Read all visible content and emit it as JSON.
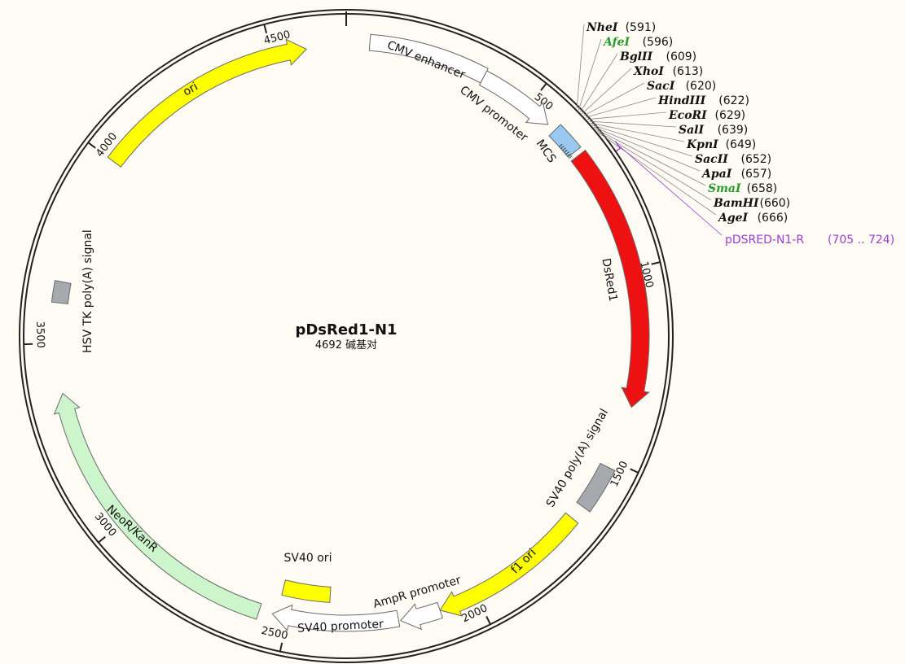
{
  "plasmid": {
    "name": "pDsRed1-N1",
    "length": 4692,
    "length_label": "4692 碱基对"
  },
  "ticks": [
    {
      "pos": 500,
      "label": "500"
    },
    {
      "pos": 1000,
      "label": "1000"
    },
    {
      "pos": 1500,
      "label": "1500"
    },
    {
      "pos": 2000,
      "label": "2000"
    },
    {
      "pos": 2500,
      "label": "2500"
    },
    {
      "pos": 3000,
      "label": "3000"
    },
    {
      "pos": 3500,
      "label": "3500"
    },
    {
      "pos": 4000,
      "label": "4000"
    },
    {
      "pos": 4500,
      "label": "4500"
    }
  ],
  "features": [
    {
      "name": "cmv-enhancer",
      "label": "CMV enhancer",
      "start": 60,
      "end": 364,
      "type": "box",
      "fill": "#ffffff"
    },
    {
      "name": "cmv-promoter",
      "label": "CMV promoter",
      "start": 364,
      "end": 568,
      "type": "arrow",
      "fill": "#ffffff"
    },
    {
      "name": "mcs",
      "label": "MCS",
      "start": 591,
      "end": 666,
      "type": "box",
      "fill": "#99c8f0"
    },
    {
      "name": "dsred1",
      "label": "DsRed1",
      "start": 679,
      "end": 1356,
      "type": "arrow",
      "fill": "#ee1111"
    },
    {
      "name": "sv40-polya",
      "label": "SV40 poly(A) signal",
      "start": 1520,
      "end": 1640,
      "type": "box",
      "fill": "#a6a9ae"
    },
    {
      "name": "f1-ori",
      "label": "f1 ori",
      "start": 1680,
      "end": 2100,
      "type": "arrow",
      "fill": "#ffff00"
    },
    {
      "name": "ampr-promoter",
      "label": "AmpR promoter",
      "start": 2100,
      "end": 2205,
      "type": "arrow",
      "fill": "#ffffff"
    },
    {
      "name": "sv40-promoter",
      "label": "SV40 promoter",
      "start": 2210,
      "end": 2540,
      "type": "arrow",
      "fill": "#ffffff"
    },
    {
      "name": "sv40-ori",
      "label": "SV40 ori",
      "start": 2392,
      "end": 2528,
      "type": "box",
      "fill": "#ffff00"
    },
    {
      "name": "neor-kanr",
      "label": "NeoR/KanR",
      "start": 2575,
      "end": 3370,
      "type": "arrow",
      "fill": "#ccf5cc"
    },
    {
      "name": "hsv-tk-polya",
      "label": "HSV TK poly(A) signal",
      "start": 3605,
      "end": 3660,
      "type": "box",
      "fill": "#a6a9ae"
    },
    {
      "name": "ori",
      "label": "ori",
      "start": 4000,
      "end": 4589,
      "type": "arrow",
      "fill": "#ffff00"
    }
  ],
  "enzymes": [
    {
      "name": "NheI",
      "pos": "(591)",
      "color": "#111111"
    },
    {
      "name": "AfeI",
      "pos": "(596)",
      "color": "#2a9a2a"
    },
    {
      "name": "BglII",
      "pos": "(609)",
      "color": "#111111"
    },
    {
      "name": "XhoI",
      "pos": "(613)",
      "color": "#111111"
    },
    {
      "name": "SacI",
      "pos": "(620)",
      "color": "#111111"
    },
    {
      "name": "HindIII",
      "pos": "(622)",
      "color": "#111111"
    },
    {
      "name": "EcoRI",
      "pos": "(629)",
      "color": "#111111"
    },
    {
      "name": "SalI",
      "pos": "(639)",
      "color": "#111111"
    },
    {
      "name": "KpnI",
      "pos": "(649)",
      "color": "#111111"
    },
    {
      "name": "SacII",
      "pos": "(652)",
      "color": "#111111"
    },
    {
      "name": "ApaI",
      "pos": "(657)",
      "color": "#111111"
    },
    {
      "name": "SmaI",
      "pos": "(658)",
      "color": "#2a9a2a"
    },
    {
      "name": "BamHI",
      "pos": "(660)",
      "color": "#111111"
    },
    {
      "name": "AgeI",
      "pos": "(666)",
      "color": "#111111"
    }
  ],
  "primer": {
    "name": "pDSRED-N1-R",
    "range": "(705 .. 724)",
    "start": 705,
    "end": 724,
    "color": "#9b3fd0"
  }
}
